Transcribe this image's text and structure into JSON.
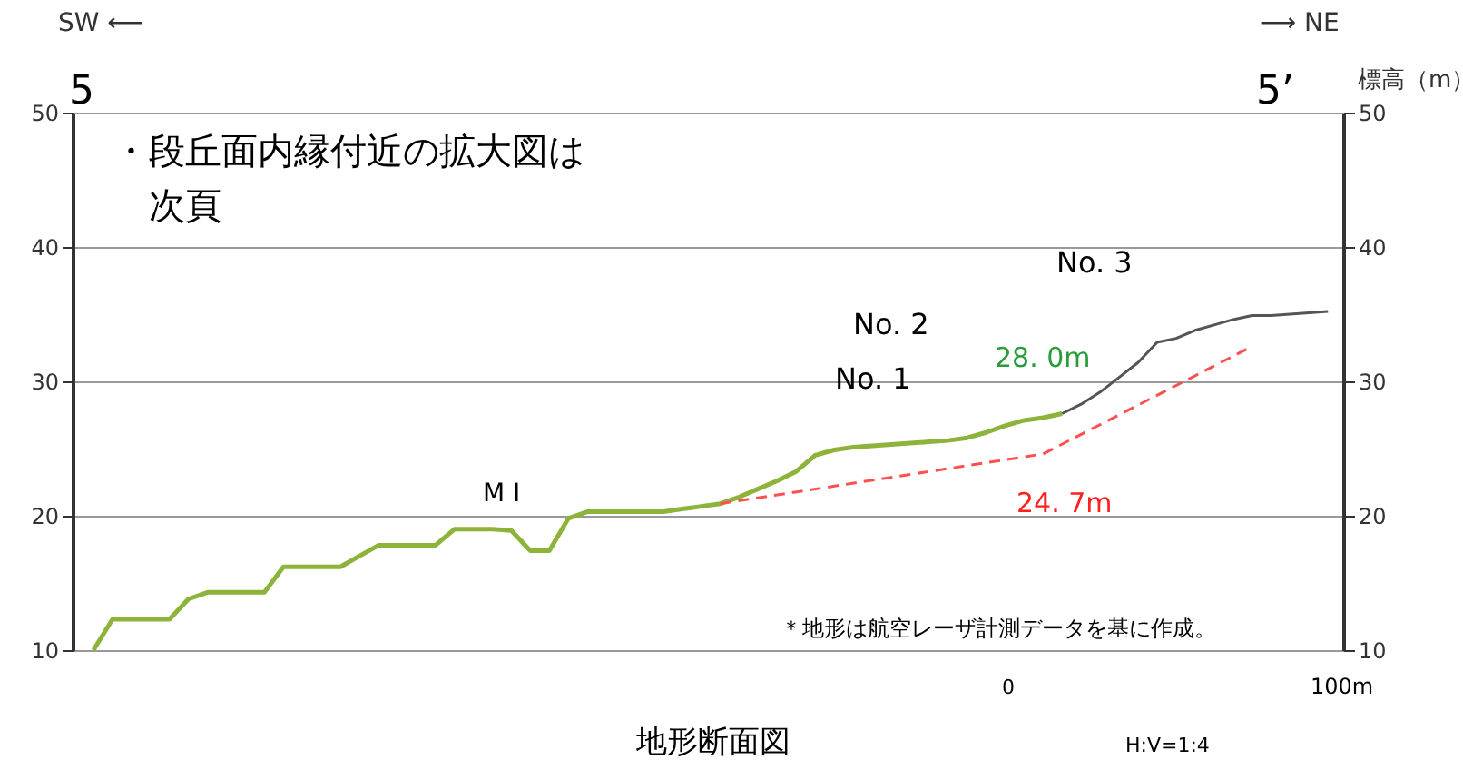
{
  "chart_data": {
    "type": "line",
    "title": "地形断面図",
    "y2label": "標高（m）",
    "categories": [
      null,
      null,
      null,
      null,
      null,
      null,
      null,
      null,
      null,
      null,
      null,
      null,
      null,
      null,
      null,
      null,
      null,
      null,
      null,
      null,
      null,
      null,
      null,
      null,
      null,
      null,
      null,
      null,
      null,
      null,
      null,
      null,
      null,
      null,
      null,
      null,
      null,
      null,
      null,
      null,
      null,
      null,
      null,
      null,
      null,
      null,
      null,
      null,
      null,
      null,
      null,
      null,
      null,
      null,
      null,
      null,
      null,
      null,
      null,
      null,
      null,
      null,
      null,
      null,
      null,
      null
    ],
    "series": [
      {
        "color": "#8db33a",
        "values": [
          10.0,
          12.3,
          12.3,
          12.3,
          12.3,
          13.8,
          14.3,
          14.3,
          14.3,
          14.3,
          16.2,
          16.2,
          16.2,
          16.2,
          17.0,
          17.8,
          17.8,
          17.8,
          17.8,
          19.0,
          19.0,
          19.0,
          18.9,
          17.4,
          17.4,
          19.8,
          20.3,
          20.3,
          20.3,
          20.3,
          20.3,
          20.5,
          20.7,
          20.9,
          21.4,
          22.0,
          22.6,
          23.3,
          24.5,
          24.9,
          25.1,
          25.2,
          25.3,
          25.4,
          25.5,
          25.6,
          25.8,
          26.2,
          26.7,
          27.1,
          27.3,
          27.6,
          null,
          null,
          null,
          null,
          null,
          null,
          null,
          null,
          null,
          null,
          null,
          null,
          null,
          null
        ]
      },
      {
        "color": "#555555",
        "axis": "y2",
        "values": [
          null,
          null,
          null,
          null,
          null,
          null,
          null,
          null,
          null,
          null,
          null,
          null,
          null,
          null,
          null,
          null,
          null,
          null,
          null,
          null,
          null,
          null,
          null,
          null,
          null,
          null,
          null,
          null,
          null,
          null,
          null,
          null,
          null,
          null,
          null,
          null,
          null,
          null,
          null,
          null,
          null,
          null,
          null,
          null,
          null,
          null,
          null,
          null,
          null,
          null,
          null,
          27.6,
          28.3,
          29.2,
          30.3,
          31.4,
          32.9,
          33.2,
          33.8,
          34.2,
          34.6,
          34.9,
          34.9,
          35.0,
          35.1,
          35.2
        ]
      },
      {
        "color": "#ff5050",
        "line_style": "dashed",
        "values": [
          null,
          null,
          null,
          null,
          null,
          null,
          null,
          null,
          null,
          null,
          null,
          null,
          null,
          null,
          null,
          null,
          null,
          null,
          null,
          null,
          null,
          null,
          null,
          null,
          null,
          null,
          null,
          null,
          null,
          null,
          null,
          null,
          null,
          20.9,
          null,
          null,
          null,
          null,
          null,
          null,
          null,
          null,
          null,
          null,
          null,
          null,
          null,
          null,
          null,
          null,
          24.6,
          null,
          null,
          null,
          null,
          null,
          null,
          null,
          null,
          null,
          null,
          32.6,
          null,
          null,
          null,
          null
        ]
      }
    ],
    "ylim": [
      10,
      50
    ],
    "yticks": [
      10,
      20,
      30,
      40,
      50
    ],
    "y2lim": [
      10,
      50
    ],
    "y2ticks": [
      10,
      20,
      30,
      40,
      50
    ],
    "grid": "y",
    "annotations": [
      "SW ⟵",
      "⟶ NE",
      "5",
      "5’",
      "・段丘面内縁付近の拡大図は",
      "次頁",
      "M I",
      "No. 1",
      "No. 2",
      "No. 3",
      "28. 0m",
      "24. 7m",
      "＊地形は航空レーザ計測データを基に作成。",
      "0",
      "100m",
      "H:V=1:4"
    ]
  }
}
